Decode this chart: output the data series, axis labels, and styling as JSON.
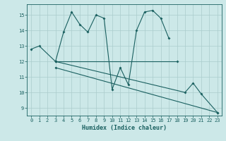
{
  "title": "",
  "xlabel": "Humidex (Indice chaleur)",
  "ylabel": "",
  "background_color": "#cce8e8",
  "grid_color": "#aacccc",
  "line_color": "#1a6060",
  "x_ticks": [
    0,
    1,
    2,
    3,
    4,
    5,
    6,
    7,
    8,
    9,
    10,
    11,
    12,
    13,
    14,
    15,
    16,
    17,
    18,
    19,
    20,
    21,
    22,
    23
  ],
  "y_ticks": [
    9,
    10,
    11,
    12,
    13,
    14,
    15
  ],
  "ylim": [
    8.5,
    15.7
  ],
  "xlim": [
    -0.5,
    23.5
  ],
  "series1_x": [
    0,
    1,
    3,
    4,
    5,
    6,
    7,
    8,
    9,
    10,
    11,
    12,
    13,
    14,
    15,
    16,
    17
  ],
  "series1_y": [
    12.8,
    13.0,
    12.0,
    13.9,
    15.2,
    14.4,
    13.9,
    15.0,
    14.8,
    10.2,
    11.6,
    10.5,
    14.0,
    15.2,
    15.3,
    14.8,
    13.5
  ],
  "series2_x": [
    3,
    18
  ],
  "series2_y": [
    12.0,
    12.0
  ],
  "series3_x": [
    3,
    23
  ],
  "series3_y": [
    11.6,
    8.7
  ],
  "series4_x": [
    3,
    19,
    20,
    21,
    23
  ],
  "series4_y": [
    12.0,
    10.0,
    10.6,
    9.9,
    8.7
  ]
}
